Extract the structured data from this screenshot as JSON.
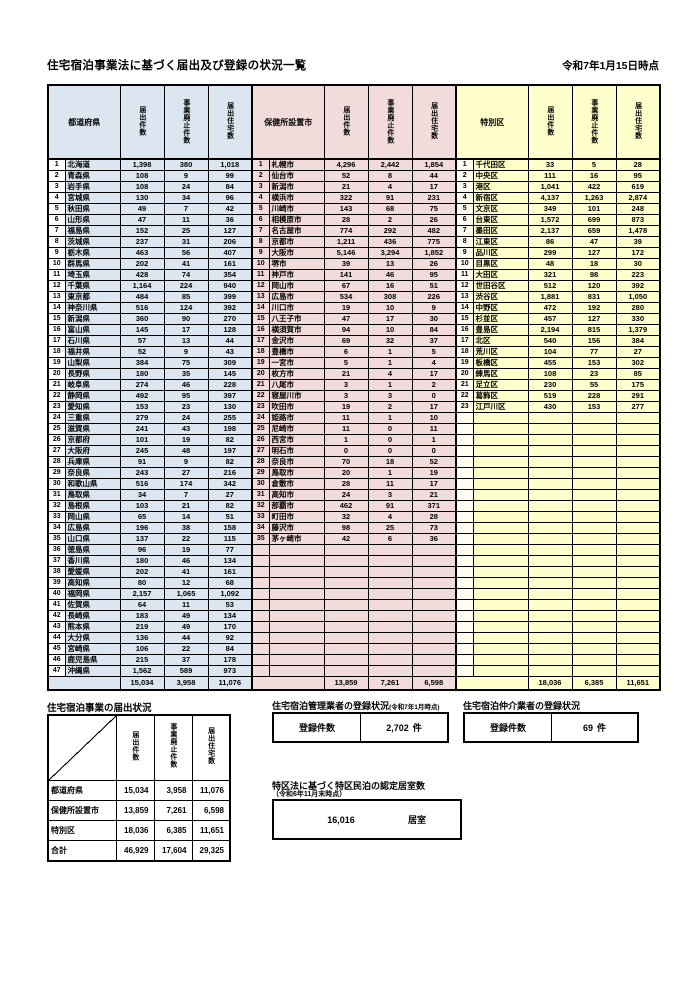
{
  "title": "住宅宿泊事業法に基づく届出及び登録の状況一覧",
  "as_of_date": "令和7年1月15日時点",
  "colors": {
    "prefecture_fill": "#dce6f1",
    "city_fill": "#f2dcdb",
    "ward_fill": "#ffffcc",
    "border": "#000000"
  },
  "main_table": {
    "headers": {
      "pref": "都道府県",
      "city": "保健所設置市",
      "ward": "特別区",
      "notifications": "届出件数",
      "discontinued": "事業廃止件数",
      "houses": "届出住宅数"
    },
    "prefectures": [
      {
        "no": 1,
        "name": "北海道",
        "values": [
          "1,398",
          "380",
          "1,018"
        ]
      },
      {
        "no": 2,
        "name": "青森県",
        "values": [
          "108",
          "9",
          "99"
        ]
      },
      {
        "no": 3,
        "name": "岩手県",
        "values": [
          "108",
          "24",
          "84"
        ]
      },
      {
        "no": 4,
        "name": "宮城県",
        "values": [
          "130",
          "34",
          "96"
        ]
      },
      {
        "no": 5,
        "name": "秋田県",
        "values": [
          "49",
          "7",
          "42"
        ]
      },
      {
        "no": 6,
        "name": "山形県",
        "values": [
          "47",
          "11",
          "36"
        ]
      },
      {
        "no": 7,
        "name": "福島県",
        "values": [
          "152",
          "25",
          "127"
        ]
      },
      {
        "no": 8,
        "name": "茨城県",
        "values": [
          "237",
          "31",
          "206"
        ]
      },
      {
        "no": 9,
        "name": "栃木県",
        "values": [
          "463",
          "56",
          "407"
        ]
      },
      {
        "no": 10,
        "name": "群馬県",
        "values": [
          "202",
          "41",
          "161"
        ]
      },
      {
        "no": 11,
        "name": "埼玉県",
        "values": [
          "428",
          "74",
          "354"
        ]
      },
      {
        "no": 12,
        "name": "千葉県",
        "values": [
          "1,164",
          "224",
          "940"
        ]
      },
      {
        "no": 13,
        "name": "東京都",
        "values": [
          "484",
          "85",
          "399"
        ]
      },
      {
        "no": 14,
        "name": "神奈川県",
        "values": [
          "516",
          "124",
          "392"
        ]
      },
      {
        "no": 15,
        "name": "新潟県",
        "values": [
          "360",
          "90",
          "270"
        ]
      },
      {
        "no": 16,
        "name": "富山県",
        "values": [
          "145",
          "17",
          "128"
        ]
      },
      {
        "no": 17,
        "name": "石川県",
        "values": [
          "57",
          "13",
          "44"
        ]
      },
      {
        "no": 18,
        "name": "福井県",
        "values": [
          "52",
          "9",
          "43"
        ]
      },
      {
        "no": 19,
        "name": "山梨県",
        "values": [
          "384",
          "75",
          "309"
        ]
      },
      {
        "no": 20,
        "name": "長野県",
        "values": [
          "180",
          "35",
          "145"
        ]
      },
      {
        "no": 21,
        "name": "岐阜県",
        "values": [
          "274",
          "46",
          "228"
        ]
      },
      {
        "no": 22,
        "name": "静岡県",
        "values": [
          "492",
          "95",
          "397"
        ]
      },
      {
        "no": 23,
        "name": "愛知県",
        "values": [
          "153",
          "23",
          "130"
        ]
      },
      {
        "no": 24,
        "name": "三重県",
        "values": [
          "279",
          "24",
          "255"
        ]
      },
      {
        "no": 25,
        "name": "滋賀県",
        "values": [
          "241",
          "43",
          "198"
        ]
      },
      {
        "no": 26,
        "name": "京都府",
        "values": [
          "101",
          "19",
          "82"
        ]
      },
      {
        "no": 27,
        "name": "大阪府",
        "values": [
          "245",
          "48",
          "197"
        ]
      },
      {
        "no": 28,
        "name": "兵庫県",
        "values": [
          "91",
          "9",
          "82"
        ]
      },
      {
        "no": 29,
        "name": "奈良県",
        "values": [
          "243",
          "27",
          "216"
        ]
      },
      {
        "no": 30,
        "name": "和歌山県",
        "values": [
          "516",
          "174",
          "342"
        ]
      },
      {
        "no": 31,
        "name": "鳥取県",
        "values": [
          "34",
          "7",
          "27"
        ]
      },
      {
        "no": 32,
        "name": "島根県",
        "values": [
          "103",
          "21",
          "82"
        ]
      },
      {
        "no": 33,
        "name": "岡山県",
        "values": [
          "65",
          "14",
          "51"
        ]
      },
      {
        "no": 34,
        "name": "広島県",
        "values": [
          "196",
          "38",
          "158"
        ]
      },
      {
        "no": 35,
        "name": "山口県",
        "values": [
          "137",
          "22",
          "115"
        ]
      },
      {
        "no": 36,
        "name": "徳島県",
        "values": [
          "96",
          "19",
          "77"
        ]
      },
      {
        "no": 37,
        "name": "香川県",
        "values": [
          "180",
          "46",
          "134"
        ]
      },
      {
        "no": 38,
        "name": "愛媛県",
        "values": [
          "202",
          "41",
          "161"
        ]
      },
      {
        "no": 39,
        "name": "高知県",
        "values": [
          "80",
          "12",
          "68"
        ]
      },
      {
        "no": 40,
        "name": "福岡県",
        "values": [
          "2,157",
          "1,065",
          "1,092"
        ]
      },
      {
        "no": 41,
        "name": "佐賀県",
        "values": [
          "64",
          "11",
          "53"
        ]
      },
      {
        "no": 42,
        "name": "長崎県",
        "values": [
          "183",
          "49",
          "134"
        ]
      },
      {
        "no": 43,
        "name": "熊本県",
        "values": [
          "219",
          "49",
          "170"
        ]
      },
      {
        "no": 44,
        "name": "大分県",
        "values": [
          "136",
          "44",
          "92"
        ]
      },
      {
        "no": 45,
        "name": "宮崎県",
        "values": [
          "106",
          "22",
          "84"
        ]
      },
      {
        "no": 46,
        "name": "鹿児島県",
        "values": [
          "215",
          "37",
          "178"
        ]
      },
      {
        "no": 47,
        "name": "沖縄県",
        "values": [
          "1,562",
          "589",
          "973"
        ]
      }
    ],
    "cities": [
      {
        "no": 1,
        "name": "札幌市",
        "values": [
          "4,296",
          "2,442",
          "1,854"
        ]
      },
      {
        "no": 2,
        "name": "仙台市",
        "values": [
          "52",
          "8",
          "44"
        ]
      },
      {
        "no": 3,
        "name": "新潟市",
        "values": [
          "21",
          "4",
          "17"
        ]
      },
      {
        "no": 4,
        "name": "横浜市",
        "values": [
          "322",
          "91",
          "231"
        ]
      },
      {
        "no": 5,
        "name": "川崎市",
        "values": [
          "143",
          "68",
          "75"
        ]
      },
      {
        "no": 6,
        "name": "相模原市",
        "values": [
          "28",
          "2",
          "26"
        ]
      },
      {
        "no": 7,
        "name": "名古屋市",
        "values": [
          "774",
          "292",
          "482"
        ]
      },
      {
        "no": 8,
        "name": "京都市",
        "values": [
          "1,211",
          "436",
          "775"
        ]
      },
      {
        "no": 9,
        "name": "大阪市",
        "values": [
          "5,146",
          "3,294",
          "1,852"
        ]
      },
      {
        "no": 10,
        "name": "堺市",
        "values": [
          "39",
          "13",
          "26"
        ]
      },
      {
        "no": 11,
        "name": "神戸市",
        "values": [
          "141",
          "46",
          "95"
        ]
      },
      {
        "no": 12,
        "name": "岡山市",
        "values": [
          "67",
          "16",
          "51"
        ]
      },
      {
        "no": 13,
        "name": "広島市",
        "values": [
          "534",
          "308",
          "226"
        ]
      },
      {
        "no": 14,
        "name": "川口市",
        "values": [
          "19",
          "10",
          "9"
        ]
      },
      {
        "no": 15,
        "name": "八王子市",
        "values": [
          "47",
          "17",
          "30"
        ]
      },
      {
        "no": 16,
        "name": "横須賀市",
        "values": [
          "94",
          "10",
          "84"
        ]
      },
      {
        "no": 17,
        "name": "金沢市",
        "values": [
          "69",
          "32",
          "37"
        ]
      },
      {
        "no": 18,
        "name": "豊橋市",
        "values": [
          "6",
          "1",
          "5"
        ]
      },
      {
        "no": 19,
        "name": "一宮市",
        "values": [
          "5",
          "1",
          "4"
        ]
      },
      {
        "no": 20,
        "name": "枚方市",
        "values": [
          "21",
          "4",
          "17"
        ]
      },
      {
        "no": 21,
        "name": "八尾市",
        "values": [
          "3",
          "1",
          "2"
        ]
      },
      {
        "no": 22,
        "name": "寝屋川市",
        "values": [
          "3",
          "3",
          "0"
        ]
      },
      {
        "no": 23,
        "name": "吹田市",
        "values": [
          "19",
          "2",
          "17"
        ]
      },
      {
        "no": 24,
        "name": "姫路市",
        "values": [
          "11",
          "1",
          "10"
        ]
      },
      {
        "no": 25,
        "name": "尼崎市",
        "values": [
          "11",
          "0",
          "11"
        ]
      },
      {
        "no": 26,
        "name": "西宮市",
        "values": [
          "1",
          "0",
          "1"
        ]
      },
      {
        "no": 27,
        "name": "明石市",
        "values": [
          "0",
          "0",
          "0"
        ]
      },
      {
        "no": 28,
        "name": "奈良市",
        "values": [
          "70",
          "18",
          "52"
        ]
      },
      {
        "no": 29,
        "name": "鳥取市",
        "values": [
          "20",
          "1",
          "19"
        ]
      },
      {
        "no": 30,
        "name": "倉敷市",
        "values": [
          "28",
          "11",
          "17"
        ]
      },
      {
        "no": 31,
        "name": "高知市",
        "values": [
          "24",
          "3",
          "21"
        ]
      },
      {
        "no": 32,
        "name": "那覇市",
        "values": [
          "462",
          "91",
          "371"
        ]
      },
      {
        "no": 33,
        "name": "町田市",
        "values": [
          "32",
          "4",
          "28"
        ]
      },
      {
        "no": 34,
        "name": "藤沢市",
        "values": [
          "98",
          "25",
          "73"
        ]
      },
      {
        "no": 35,
        "name": "茅ヶ崎市",
        "values": [
          "42",
          "6",
          "36"
        ]
      }
    ],
    "wards": [
      {
        "no": 1,
        "name": "千代田区",
        "values": [
          "33",
          "5",
          "28"
        ]
      },
      {
        "no": 2,
        "name": "中央区",
        "values": [
          "111",
          "16",
          "95"
        ]
      },
      {
        "no": 3,
        "name": "港区",
        "values": [
          "1,041",
          "422",
          "619"
        ]
      },
      {
        "no": 4,
        "name": "新宿区",
        "values": [
          "4,137",
          "1,263",
          "2,874"
        ]
      },
      {
        "no": 5,
        "name": "文京区",
        "values": [
          "349",
          "101",
          "248"
        ]
      },
      {
        "no": 6,
        "name": "台東区",
        "values": [
          "1,572",
          "699",
          "873"
        ]
      },
      {
        "no": 7,
        "name": "墨田区",
        "values": [
          "2,137",
          "659",
          "1,478"
        ]
      },
      {
        "no": 8,
        "name": "江東区",
        "values": [
          "86",
          "47",
          "39"
        ]
      },
      {
        "no": 9,
        "name": "品川区",
        "values": [
          "299",
          "127",
          "172"
        ]
      },
      {
        "no": 10,
        "name": "目黒区",
        "values": [
          "48",
          "18",
          "30"
        ]
      },
      {
        "no": 11,
        "name": "大田区",
        "values": [
          "321",
          "98",
          "223"
        ]
      },
      {
        "no": 12,
        "name": "世田谷区",
        "values": [
          "512",
          "120",
          "392"
        ]
      },
      {
        "no": 13,
        "name": "渋谷区",
        "values": [
          "1,881",
          "831",
          "1,050"
        ]
      },
      {
        "no": 14,
        "name": "中野区",
        "values": [
          "472",
          "192",
          "280"
        ]
      },
      {
        "no": 15,
        "name": "杉並区",
        "values": [
          "457",
          "127",
          "330"
        ]
      },
      {
        "no": 16,
        "name": "豊島区",
        "values": [
          "2,194",
          "815",
          "1,379"
        ]
      },
      {
        "no": 17,
        "name": "北区",
        "values": [
          "540",
          "156",
          "384"
        ]
      },
      {
        "no": 18,
        "name": "荒川区",
        "values": [
          "104",
          "77",
          "27"
        ]
      },
      {
        "no": 19,
        "name": "板橋区",
        "values": [
          "455",
          "153",
          "302"
        ]
      },
      {
        "no": 20,
        "name": "練馬区",
        "values": [
          "108",
          "23",
          "85"
        ]
      },
      {
        "no": 21,
        "name": "足立区",
        "values": [
          "230",
          "55",
          "175"
        ]
      },
      {
        "no": 22,
        "name": "葛飾区",
        "values": [
          "519",
          "228",
          "291"
        ]
      },
      {
        "no": 23,
        "name": "江戸川区",
        "values": [
          "430",
          "153",
          "277"
        ]
      }
    ],
    "row_count": 47,
    "totals": {
      "prefectures": [
        "15,034",
        "3,958",
        "11,076"
      ],
      "cities": [
        "13,859",
        "7,261",
        "6,598"
      ],
      "wards": [
        "18,036",
        "6,385",
        "11,651"
      ]
    }
  },
  "summary": {
    "title": "住宅宿泊事業の届出状況",
    "col_headers": [
      "届出件数",
      "事業廃止件数",
      "届出住宅数"
    ],
    "rows": [
      {
        "label": "都道府県",
        "values": [
          "15,034",
          "3,958",
          "11,076"
        ]
      },
      {
        "label": "保健所設置市",
        "values": [
          "13,859",
          "7,261",
          "6,598"
        ]
      },
      {
        "label": "特別区",
        "values": [
          "18,036",
          "6,385",
          "11,651"
        ]
      },
      {
        "label": "合計",
        "values": [
          "46,929",
          "17,604",
          "29,325"
        ]
      }
    ]
  },
  "manager_registration": {
    "title": "住宅宿泊管理業者の登録状況",
    "note": "(令和7年1月時点)",
    "label": "登録件数",
    "value": "2,702",
    "unit": "件"
  },
  "broker_registration": {
    "title": "住宅宿泊仲介業者の登録状況",
    "label": "登録件数",
    "value": "69",
    "unit": "件"
  },
  "tokku": {
    "title": "特区法に基づく特区民泊の認定居室数",
    "note": "（令和6年11月末時点）",
    "value": "16,016",
    "unit": "居室"
  }
}
